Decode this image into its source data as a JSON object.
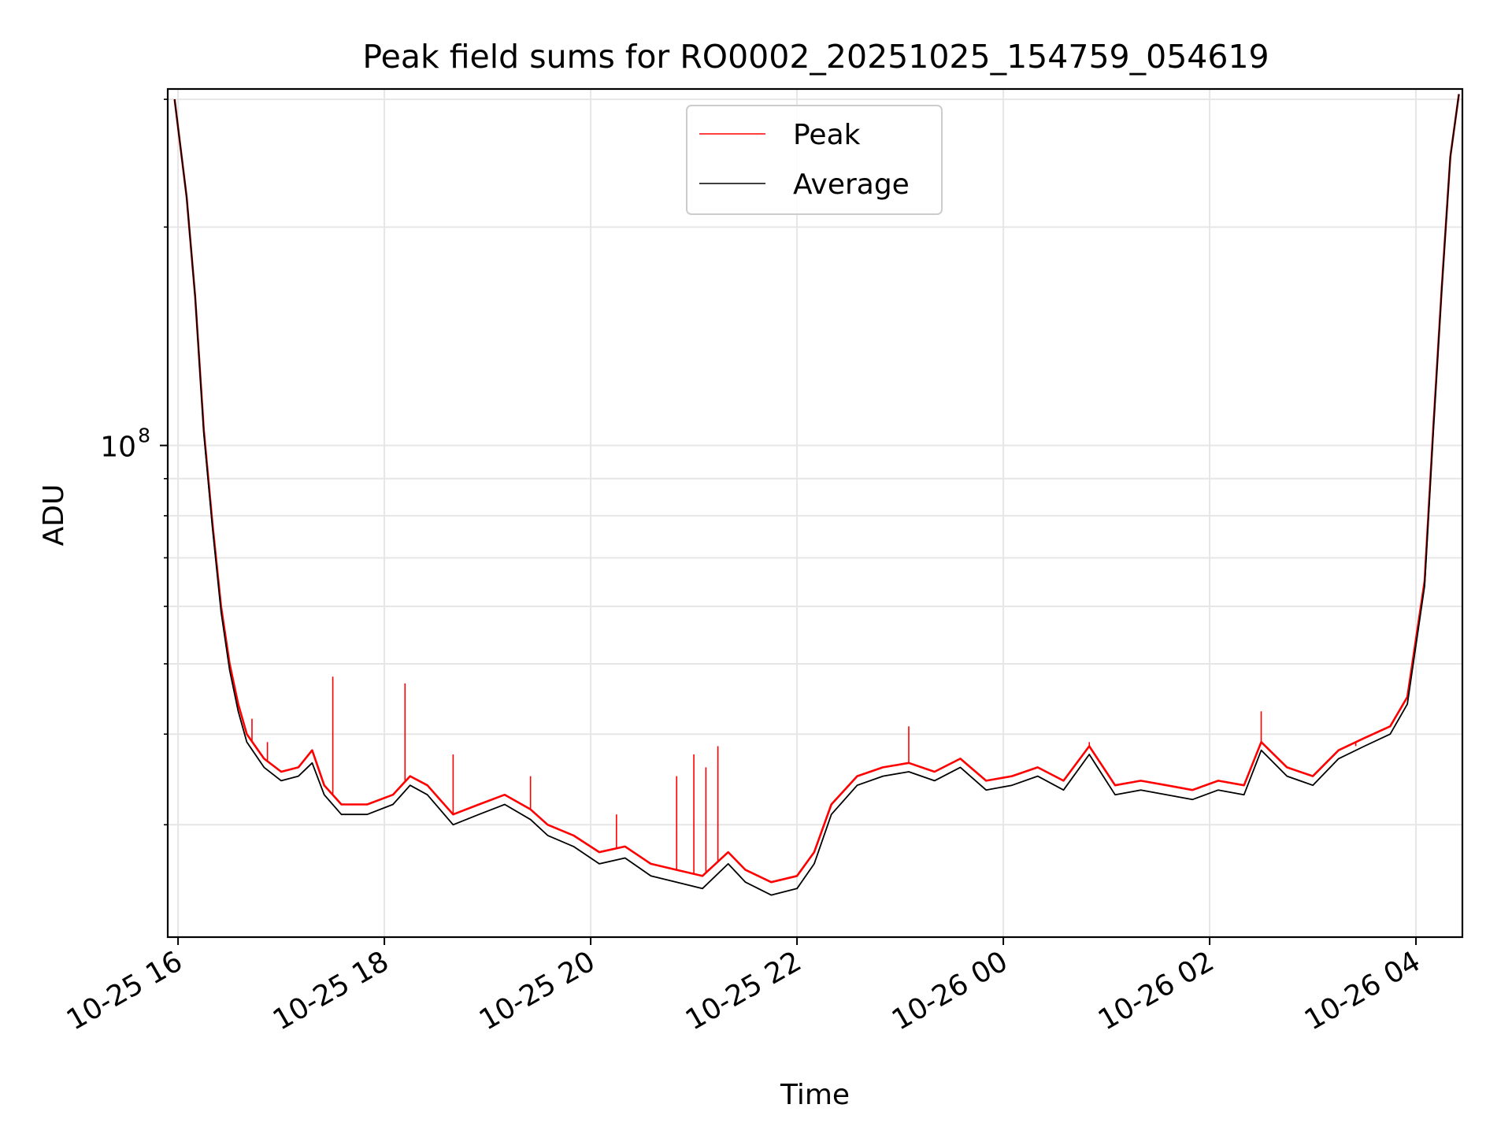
{
  "chart_data": {
    "type": "line",
    "title": "Peak field sums for RO0002_20251025_154759_054619",
    "xlabel": "Time",
    "ylabel": "ADU",
    "y_scale": "log",
    "grid": true,
    "legend_position": "top-center",
    "x_range": [
      "2025-10-25 15:54",
      "2025-10-26 04:27"
    ],
    "y_range": [
      21000000,
      310000000
    ],
    "x_ticks": [
      {
        "label": "10-25 16",
        "t": "2025-10-25 16:00"
      },
      {
        "label": "10-25 18",
        "t": "2025-10-25 18:00"
      },
      {
        "label": "10-25 20",
        "t": "2025-10-25 20:00"
      },
      {
        "label": "10-25 22",
        "t": "2025-10-25 22:00"
      },
      {
        "label": "10-26 00",
        "t": "2025-10-26 00:00"
      },
      {
        "label": "10-26 02",
        "t": "2025-10-26 02:00"
      },
      {
        "label": "10-26 04",
        "t": "2025-10-26 04:00"
      }
    ],
    "y_major_ticks": [
      {
        "label_base": "10",
        "label_exp": "8",
        "value": 100000000
      }
    ],
    "y_minor_ticks": [
      30000000,
      40000000,
      50000000,
      60000000,
      70000000,
      80000000,
      90000000,
      200000000,
      300000000
    ],
    "series": [
      {
        "name": "Peak",
        "color": "#ff0000",
        "points": [
          [
            "2025-10-25 15:58",
            300000000
          ],
          [
            "2025-10-25 16:05",
            220000000
          ],
          [
            "2025-10-25 16:10",
            160000000
          ],
          [
            "2025-10-25 16:15",
            105000000
          ],
          [
            "2025-10-25 16:20",
            78000000
          ],
          [
            "2025-10-25 16:25",
            60000000
          ],
          [
            "2025-10-25 16:30",
            50000000
          ],
          [
            "2025-10-25 16:35",
            44000000
          ],
          [
            "2025-10-25 16:40",
            40000000
          ],
          [
            "2025-10-25 16:50",
            37000000
          ],
          [
            "2025-10-25 17:00",
            35500000
          ],
          [
            "2025-10-25 17:10",
            36000000
          ],
          [
            "2025-10-25 17:18",
            38000000
          ],
          [
            "2025-10-25 17:25",
            34000000
          ],
          [
            "2025-10-25 17:35",
            32000000
          ],
          [
            "2025-10-25 17:50",
            32000000
          ],
          [
            "2025-10-25 18:05",
            33000000
          ],
          [
            "2025-10-25 18:15",
            35000000
          ],
          [
            "2025-10-25 18:25",
            34000000
          ],
          [
            "2025-10-25 18:40",
            31000000
          ],
          [
            "2025-10-25 18:55",
            32000000
          ],
          [
            "2025-10-25 19:10",
            33000000
          ],
          [
            "2025-10-25 19:25",
            31500000
          ],
          [
            "2025-10-25 19:35",
            30000000
          ],
          [
            "2025-10-25 19:50",
            29000000
          ],
          [
            "2025-10-25 20:05",
            27500000
          ],
          [
            "2025-10-25 20:20",
            28000000
          ],
          [
            "2025-10-25 20:35",
            26500000
          ],
          [
            "2025-10-25 20:50",
            26000000
          ],
          [
            "2025-10-25 21:05",
            25500000
          ],
          [
            "2025-10-25 21:20",
            27500000
          ],
          [
            "2025-10-25 21:30",
            26000000
          ],
          [
            "2025-10-25 21:45",
            25000000
          ],
          [
            "2025-10-25 22:00",
            25500000
          ],
          [
            "2025-10-25 22:10",
            27500000
          ],
          [
            "2025-10-25 22:20",
            32000000
          ],
          [
            "2025-10-25 22:35",
            35000000
          ],
          [
            "2025-10-25 22:50",
            36000000
          ],
          [
            "2025-10-25 23:05",
            36500000
          ],
          [
            "2025-10-25 23:20",
            35500000
          ],
          [
            "2025-10-25 23:35",
            37000000
          ],
          [
            "2025-10-25 23:50",
            34500000
          ],
          [
            "2025-10-26 00:05",
            35000000
          ],
          [
            "2025-10-26 00:20",
            36000000
          ],
          [
            "2025-10-26 00:35",
            34500000
          ],
          [
            "2025-10-26 00:50",
            38500000
          ],
          [
            "2025-10-26 01:05",
            34000000
          ],
          [
            "2025-10-26 01:20",
            34500000
          ],
          [
            "2025-10-26 01:35",
            34000000
          ],
          [
            "2025-10-26 01:50",
            33500000
          ],
          [
            "2025-10-26 02:05",
            34500000
          ],
          [
            "2025-10-26 02:20",
            34000000
          ],
          [
            "2025-10-26 02:30",
            39000000
          ],
          [
            "2025-10-26 02:45",
            36000000
          ],
          [
            "2025-10-26 03:00",
            35000000
          ],
          [
            "2025-10-26 03:15",
            38000000
          ],
          [
            "2025-10-26 03:30",
            39500000
          ],
          [
            "2025-10-26 03:45",
            41000000
          ],
          [
            "2025-10-26 03:55",
            45000000
          ],
          [
            "2025-10-26 04:05",
            65000000
          ],
          [
            "2025-10-26 04:10",
            105000000
          ],
          [
            "2025-10-26 04:15",
            165000000
          ],
          [
            "2025-10-26 04:20",
            250000000
          ],
          [
            "2025-10-26 04:25",
            305000000
          ]
        ]
      },
      {
        "name": "Average",
        "color": "#000000",
        "points": [
          [
            "2025-10-25 15:58",
            300000000
          ],
          [
            "2025-10-25 16:05",
            220000000
          ],
          [
            "2025-10-25 16:10",
            160000000
          ],
          [
            "2025-10-25 16:15",
            104000000
          ],
          [
            "2025-10-25 16:20",
            77000000
          ],
          [
            "2025-10-25 16:25",
            59000000
          ],
          [
            "2025-10-25 16:30",
            49000000
          ],
          [
            "2025-10-25 16:35",
            43000000
          ],
          [
            "2025-10-25 16:40",
            39000000
          ],
          [
            "2025-10-25 16:50",
            36000000
          ],
          [
            "2025-10-25 17:00",
            34500000
          ],
          [
            "2025-10-25 17:10",
            35000000
          ],
          [
            "2025-10-25 17:18",
            36500000
          ],
          [
            "2025-10-25 17:25",
            33000000
          ],
          [
            "2025-10-25 17:35",
            31000000
          ],
          [
            "2025-10-25 17:50",
            31000000
          ],
          [
            "2025-10-25 18:05",
            32000000
          ],
          [
            "2025-10-25 18:15",
            34000000
          ],
          [
            "2025-10-25 18:25",
            33000000
          ],
          [
            "2025-10-25 18:40",
            30000000
          ],
          [
            "2025-10-25 18:55",
            31000000
          ],
          [
            "2025-10-25 19:10",
            32000000
          ],
          [
            "2025-10-25 19:25",
            30500000
          ],
          [
            "2025-10-25 19:35",
            29000000
          ],
          [
            "2025-10-25 19:50",
            28000000
          ],
          [
            "2025-10-25 20:05",
            26500000
          ],
          [
            "2025-10-25 20:20",
            27000000
          ],
          [
            "2025-10-25 20:35",
            25500000
          ],
          [
            "2025-10-25 20:50",
            25000000
          ],
          [
            "2025-10-25 21:05",
            24500000
          ],
          [
            "2025-10-25 21:20",
            26500000
          ],
          [
            "2025-10-25 21:30",
            25000000
          ],
          [
            "2025-10-25 21:45",
            24000000
          ],
          [
            "2025-10-25 22:00",
            24500000
          ],
          [
            "2025-10-25 22:10",
            26500000
          ],
          [
            "2025-10-25 22:20",
            31000000
          ],
          [
            "2025-10-25 22:35",
            34000000
          ],
          [
            "2025-10-25 22:50",
            35000000
          ],
          [
            "2025-10-25 23:05",
            35500000
          ],
          [
            "2025-10-25 23:20",
            34500000
          ],
          [
            "2025-10-25 23:35",
            36000000
          ],
          [
            "2025-10-25 23:50",
            33500000
          ],
          [
            "2025-10-26 00:05",
            34000000
          ],
          [
            "2025-10-26 00:20",
            35000000
          ],
          [
            "2025-10-26 00:35",
            33500000
          ],
          [
            "2025-10-26 00:50",
            37500000
          ],
          [
            "2025-10-26 01:05",
            33000000
          ],
          [
            "2025-10-26 01:20",
            33500000
          ],
          [
            "2025-10-26 01:35",
            33000000
          ],
          [
            "2025-10-26 01:50",
            32500000
          ],
          [
            "2025-10-26 02:05",
            33500000
          ],
          [
            "2025-10-26 02:20",
            33000000
          ],
          [
            "2025-10-26 02:30",
            38000000
          ],
          [
            "2025-10-26 02:45",
            35000000
          ],
          [
            "2025-10-26 03:00",
            34000000
          ],
          [
            "2025-10-26 03:15",
            37000000
          ],
          [
            "2025-10-26 03:30",
            38500000
          ],
          [
            "2025-10-26 03:45",
            40000000
          ],
          [
            "2025-10-26 03:55",
            44000000
          ],
          [
            "2025-10-26 04:05",
            64000000
          ],
          [
            "2025-10-26 04:10",
            104000000
          ],
          [
            "2025-10-26 04:15",
            164000000
          ],
          [
            "2025-10-26 04:20",
            250000000
          ],
          [
            "2025-10-26 04:25",
            305000000
          ]
        ]
      }
    ],
    "spikes": [
      {
        "t": "2025-10-25 16:43",
        "value": 42000000
      },
      {
        "t": "2025-10-25 16:52",
        "value": 39000000
      },
      {
        "t": "2025-10-25 17:30",
        "value": 48000000
      },
      {
        "t": "2025-10-25 18:12",
        "value": 47000000
      },
      {
        "t": "2025-10-25 18:40",
        "value": 37500000
      },
      {
        "t": "2025-10-25 19:25",
        "value": 35000000
      },
      {
        "t": "2025-10-25 20:15",
        "value": 31000000
      },
      {
        "t": "2025-10-25 20:50",
        "value": 35000000
      },
      {
        "t": "2025-10-25 21:00",
        "value": 37500000
      },
      {
        "t": "2025-10-25 21:07",
        "value": 36000000
      },
      {
        "t": "2025-10-25 21:14",
        "value": 38500000
      },
      {
        "t": "2025-10-25 23:05",
        "value": 41000000
      },
      {
        "t": "2025-10-26 00:50",
        "value": 39000000
      },
      {
        "t": "2025-10-26 02:30",
        "value": 43000000
      },
      {
        "t": "2025-10-26 03:25",
        "value": 38500000
      }
    ]
  }
}
